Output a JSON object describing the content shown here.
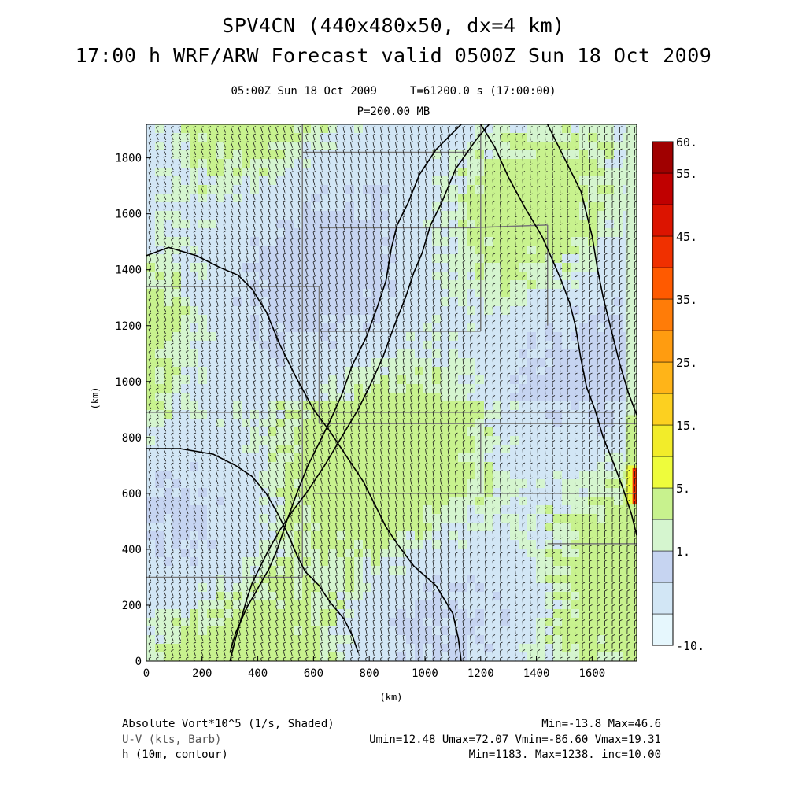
{
  "titles": {
    "line1": "SPV4CN (440x480x50, dx=4 km)",
    "line2": "17:00 h WRF/ARW Forecast valid 0500Z Sun 18 Oct 2009",
    "valid": "05:00Z Sun 18 Oct 2009     T=61200.0 s (17:00:00)",
    "level": "P=200.00 MB"
  },
  "footer": {
    "field1_name": "Absolute Vort*10^5 (1/s, Shaded)",
    "field1_stats": "Min=-13.8 Max=46.6",
    "field2_name": "U-V (kts, Barb)",
    "field2_stats": "Umin=12.48 Umax=72.07 Vmin=-86.60 Vmax=19.31",
    "field3_name": "h (10m, contour)",
    "field3_stats": "Min=1183. Max=1238. inc=10.00"
  },
  "colors": {
    "vort_bins": [
      "#e6f7fd",
      "#d2e6f5",
      "#c6d4f1",
      "#d5f5cf",
      "#c8f28e",
      "#eefc3c",
      "#f2ec2a",
      "#fcd020",
      "#ffb418",
      "#ff9c10",
      "#ff7c08",
      "#ff5a00",
      "#f03000",
      "#dc1400",
      "#c00000",
      "#a00000"
    ],
    "barb": "#1a1a1a",
    "contour": "#000000",
    "state_line": "#777777"
  },
  "chart_data": {
    "type": "heatmap",
    "xlabel": "(km)",
    "ylabel": "(km)",
    "xlim": [
      0,
      1760
    ],
    "ylim": [
      0,
      1920
    ],
    "x_ticks": [
      0,
      200,
      400,
      600,
      800,
      1000,
      1200,
      1400,
      1600
    ],
    "y_ticks": [
      0,
      200,
      400,
      600,
      800,
      1000,
      1200,
      1400,
      1600,
      1800
    ],
    "colorbar": {
      "labels": [
        "60.",
        "55.",
        "45.",
        "35.",
        "25.",
        "15.",
        "5.",
        "1.",
        "-10."
      ],
      "label_values": [
        60,
        55,
        45,
        35,
        25,
        15,
        5,
        1,
        -10
      ]
    },
    "height_contours": [
      {
        "points": [
          [
            0,
            1450
          ],
          [
            80,
            1480
          ],
          [
            180,
            1450
          ],
          [
            260,
            1410
          ],
          [
            330,
            1380
          ],
          [
            380,
            1330
          ],
          [
            430,
            1250
          ],
          [
            480,
            1130
          ],
          [
            540,
            1010
          ],
          [
            600,
            900
          ],
          [
            660,
            820
          ],
          [
            720,
            730
          ],
          [
            780,
            640
          ],
          [
            820,
            560
          ],
          [
            860,
            480
          ],
          [
            900,
            420
          ],
          [
            960,
            340
          ],
          [
            1040,
            270
          ],
          [
            1100,
            170
          ],
          [
            1120,
            80
          ],
          [
            1130,
            0
          ]
        ]
      },
      {
        "points": [
          [
            0,
            760
          ],
          [
            120,
            760
          ],
          [
            240,
            740
          ],
          [
            320,
            700
          ],
          [
            380,
            660
          ],
          [
            430,
            600
          ],
          [
            470,
            530
          ],
          [
            510,
            450
          ],
          [
            540,
            380
          ],
          [
            570,
            320
          ],
          [
            620,
            270
          ],
          [
            660,
            210
          ],
          [
            710,
            150
          ],
          [
            740,
            90
          ],
          [
            760,
            30
          ]
        ]
      },
      {
        "points": [
          [
            1230,
            1920
          ],
          [
            1180,
            1860
          ],
          [
            1110,
            1760
          ],
          [
            1060,
            1640
          ],
          [
            1020,
            1560
          ],
          [
            990,
            1460
          ],
          [
            960,
            1390
          ],
          [
            930,
            1300
          ],
          [
            890,
            1200
          ],
          [
            850,
            1090
          ],
          [
            800,
            980
          ],
          [
            760,
            900
          ],
          [
            700,
            800
          ],
          [
            640,
            700
          ],
          [
            580,
            610
          ],
          [
            520,
            530
          ],
          [
            480,
            470
          ],
          [
            440,
            400
          ],
          [
            410,
            340
          ],
          [
            380,
            280
          ],
          [
            360,
            220
          ],
          [
            340,
            150
          ],
          [
            320,
            80
          ],
          [
            300,
            0
          ]
        ]
      },
      {
        "points": [
          [
            1200,
            1920
          ],
          [
            1250,
            1840
          ],
          [
            1300,
            1730
          ],
          [
            1360,
            1620
          ],
          [
            1420,
            1520
          ],
          [
            1460,
            1430
          ],
          [
            1490,
            1360
          ],
          [
            1520,
            1280
          ],
          [
            1540,
            1200
          ],
          [
            1560,
            1080
          ],
          [
            1580,
            980
          ],
          [
            1610,
            900
          ],
          [
            1640,
            800
          ],
          [
            1680,
            700
          ],
          [
            1710,
            620
          ],
          [
            1740,
            530
          ],
          [
            1760,
            450
          ]
        ]
      },
      {
        "points": [
          [
            1440,
            1920
          ],
          [
            1470,
            1860
          ],
          [
            1520,
            1760
          ],
          [
            1560,
            1680
          ],
          [
            1580,
            1600
          ],
          [
            1600,
            1520
          ],
          [
            1620,
            1400
          ],
          [
            1640,
            1300
          ],
          [
            1670,
            1180
          ],
          [
            1700,
            1060
          ],
          [
            1730,
            960
          ],
          [
            1760,
            880
          ]
        ]
      },
      {
        "points": [
          [
            1130,
            1920
          ],
          [
            1040,
            1830
          ],
          [
            980,
            1740
          ],
          [
            940,
            1640
          ],
          [
            900,
            1560
          ],
          [
            880,
            1480
          ],
          [
            860,
            1360
          ],
          [
            830,
            1270
          ],
          [
            790,
            1160
          ],
          [
            740,
            1060
          ],
          [
            700,
            950
          ],
          [
            660,
            860
          ],
          [
            620,
            780
          ],
          [
            580,
            700
          ],
          [
            540,
            600
          ],
          [
            500,
            490
          ],
          [
            470,
            400
          ],
          [
            440,
            330
          ],
          [
            400,
            260
          ],
          [
            360,
            190
          ],
          [
            320,
            100
          ],
          [
            300,
            30
          ]
        ]
      }
    ]
  }
}
